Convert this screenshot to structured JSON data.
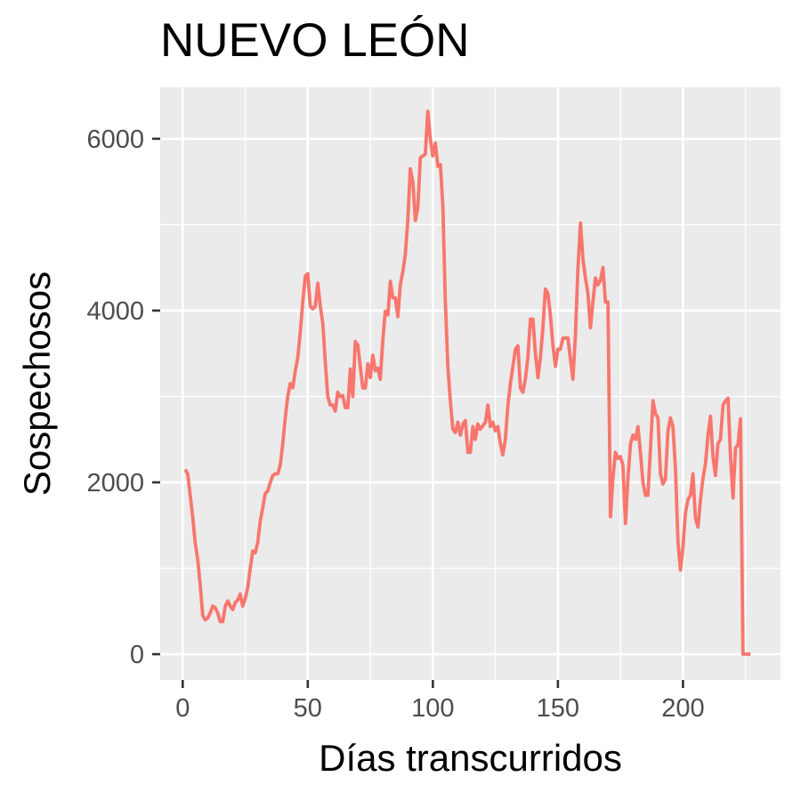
{
  "chart_data": {
    "type": "line",
    "title": "NUEVO LEÓN",
    "xlabel": "Días transcurridos",
    "ylabel": "Sospechosos",
    "xlim": [
      -9,
      239
    ],
    "ylim": [
      -300,
      6600
    ],
    "x_ticks": [
      0,
      50,
      100,
      150,
      200
    ],
    "y_ticks": [
      0,
      2000,
      4000,
      6000
    ],
    "x_tick_labels": [
      "0",
      "50",
      "100",
      "150",
      "200"
    ],
    "y_tick_labels": [
      "0",
      "2000",
      "4000",
      "6000"
    ],
    "grid": true,
    "legend": "none",
    "line_color": "#F8766D",
    "series": [
      {
        "x": [
          1,
          2,
          3,
          4,
          5,
          6,
          7,
          8,
          9,
          10,
          11,
          12,
          13,
          14,
          15,
          16,
          17,
          18,
          19,
          20,
          21,
          22,
          23,
          24,
          25,
          26,
          27,
          28,
          29,
          30,
          31,
          32,
          33,
          34,
          35,
          36,
          37,
          38,
          39,
          40,
          41,
          42,
          43,
          44,
          45,
          46,
          47,
          48,
          49,
          50,
          51,
          52,
          53,
          54,
          55,
          56,
          57,
          58,
          59,
          60,
          61,
          62,
          63,
          64,
          65,
          66,
          67,
          68,
          69,
          70,
          71,
          72,
          73,
          74,
          75,
          76,
          77,
          78,
          79,
          80,
          81,
          82,
          83,
          84,
          85,
          86,
          87,
          88,
          89,
          90,
          91,
          92,
          93,
          94,
          95,
          96,
          97,
          98,
          99,
          100,
          101,
          102,
          103,
          104,
          105,
          106,
          107,
          108,
          109,
          110,
          111,
          112,
          113,
          114,
          115,
          116,
          117,
          118,
          119,
          120,
          121,
          122,
          123,
          124,
          125,
          126,
          127,
          128,
          129,
          130,
          131,
          132,
          133,
          134,
          135,
          136,
          137,
          138,
          139,
          140,
          141,
          142,
          143,
          144,
          145,
          146,
          147,
          148,
          149,
          150,
          151,
          152,
          153,
          154,
          155,
          156,
          157,
          158,
          159,
          160,
          161,
          162,
          163,
          164,
          165,
          166,
          167,
          168,
          169,
          170,
          171,
          172,
          173,
          174,
          175,
          176,
          177,
          178,
          179,
          180,
          181,
          182,
          183,
          184,
          185,
          186,
          187,
          188,
          189,
          190,
          191,
          192,
          193,
          194,
          195,
          196,
          197,
          198,
          199,
          200,
          201,
          202,
          203,
          204,
          205,
          206,
          207,
          208,
          209,
          210,
          211,
          212,
          213,
          214,
          215,
          216,
          217,
          218,
          219,
          220,
          221,
          222,
          223,
          224,
          225,
          226,
          227
        ],
        "y": [
          2150,
          2100,
          1850,
          1600,
          1300,
          1100,
          800,
          450,
          400,
          420,
          480,
          560,
          540,
          480,
          380,
          380,
          560,
          620,
          560,
          520,
          600,
          630,
          700,
          560,
          650,
          780,
          1000,
          1200,
          1180,
          1300,
          1550,
          1700,
          1870,
          1900,
          2000,
          2080,
          2100,
          2100,
          2200,
          2450,
          2750,
          3000,
          3150,
          3100,
          3300,
          3450,
          3750,
          4100,
          4400,
          4430,
          4050,
          4020,
          4050,
          4320,
          4050,
          3850,
          3400,
          3000,
          2900,
          2900,
          2830,
          3050,
          3000,
          3010,
          2870,
          2870,
          3320,
          3000,
          3640,
          3600,
          3350,
          3100,
          3100,
          3380,
          3220,
          3480,
          3300,
          3330,
          3200,
          3650,
          3990,
          3950,
          4340,
          4150,
          4150,
          3930,
          4300,
          4450,
          4650,
          5050,
          5650,
          5500,
          5050,
          5200,
          5780,
          5800,
          5820,
          6320,
          6000,
          5800,
          5950,
          5680,
          5700,
          5220,
          4100,
          3350,
          2950,
          2620,
          2580,
          2700,
          2550,
          2680,
          2720,
          2350,
          2350,
          2650,
          2500,
          2680,
          2620,
          2660,
          2700,
          2900,
          2650,
          2700,
          2600,
          2650,
          2450,
          2320,
          2500,
          2900,
          3150,
          3350,
          3550,
          3590,
          3100,
          3050,
          3200,
          3450,
          3900,
          3900,
          3500,
          3220,
          3450,
          3800,
          4250,
          4200,
          3950,
          3600,
          3350,
          3550,
          3550,
          3680,
          3680,
          3680,
          3440,
          3200,
          3700,
          4500,
          5020,
          4600,
          4380,
          4200,
          3800,
          4100,
          4380,
          4300,
          4350,
          4500,
          4100,
          4100,
          1600,
          2050,
          2350,
          2280,
          2300,
          2200,
          1520,
          2050,
          2450,
          2550,
          2500,
          2650,
          2350,
          2000,
          1850,
          1850,
          2400,
          2950,
          2800,
          2750,
          2100,
          1980,
          2040,
          2600,
          2750,
          2650,
          2150,
          1300,
          980,
          1250,
          1650,
          1800,
          1850,
          2100,
          1580,
          1480,
          1800,
          2050,
          2220,
          2550,
          2770,
          2300,
          2080,
          2450,
          2500,
          2900,
          2950,
          2980,
          2300,
          1820,
          2400,
          2440,
          2740,
          0,
          0,
          0,
          0
        ]
      }
    ]
  }
}
